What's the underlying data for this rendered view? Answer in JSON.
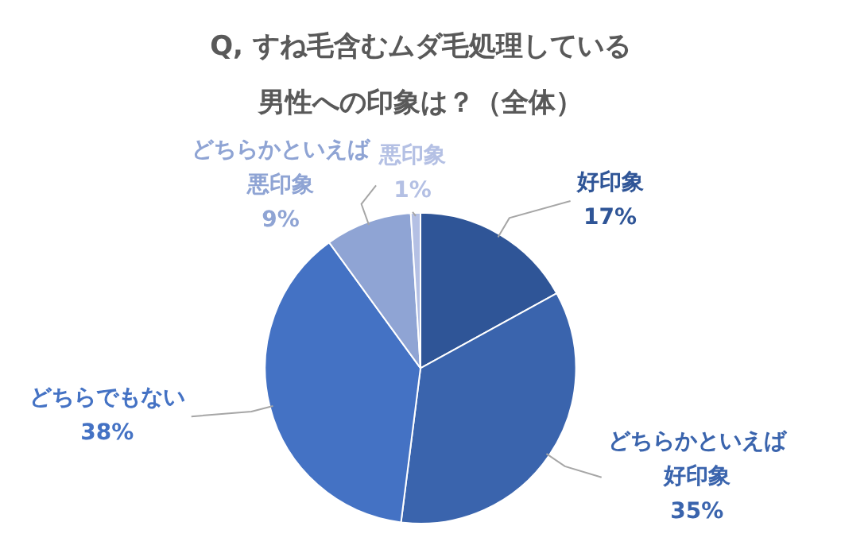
{
  "chart_data": {
    "type": "pie",
    "title": "Q, すね毛含むムダ毛処理している男性への印象は？（全体）",
    "categories": [
      "好印象",
      "どちらかといえば好印象",
      "どちらでもない",
      "どちらかといえば悪印象",
      "悪印象"
    ],
    "values": [
      17,
      35,
      38,
      9,
      1
    ],
    "colors": [
      "#2f5597",
      "#3a64ad",
      "#4472c4",
      "#8fa4d4",
      "#b4c0e4"
    ],
    "value_labels": [
      "17%",
      "35%",
      "38%",
      "9%",
      "1%"
    ]
  }
}
